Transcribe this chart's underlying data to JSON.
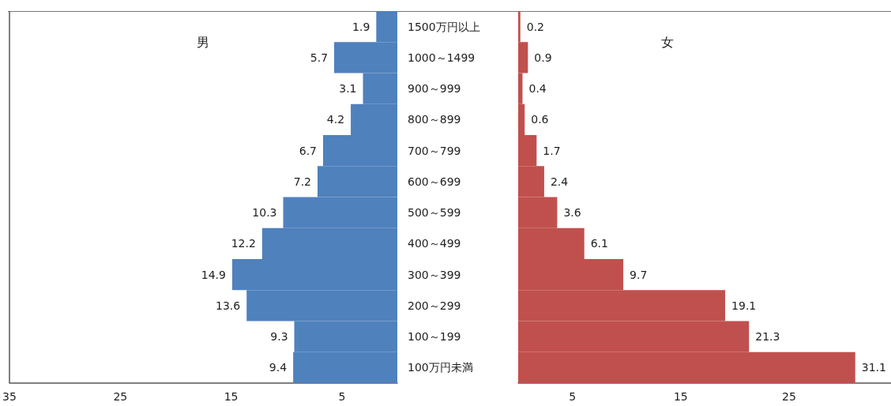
{
  "chart_data": [
    {
      "type": "bar",
      "orientation": "horizontal",
      "title": "男",
      "categories": [
        "1500万円以上",
        "1000～1499",
        "900～999",
        "800～899",
        "700～799",
        "600～699",
        "500～599",
        "400～499",
        "300～399",
        "200～299",
        "100～199",
        "100万円未満"
      ],
      "values": [
        1.9,
        5.7,
        3.1,
        4.2,
        6.7,
        7.2,
        10.3,
        12.2,
        14.9,
        13.6,
        9.3,
        9.4
      ],
      "data_labels": true,
      "color": "#4f81bd",
      "xlim": [
        35,
        0
      ],
      "xticks": [
        35,
        25,
        15,
        5
      ]
    },
    {
      "type": "bar",
      "orientation": "horizontal",
      "title": "女",
      "categories": [
        null,
        null,
        null,
        null,
        null,
        null,
        null,
        null,
        null,
        null,
        null,
        null
      ],
      "values": [
        0.2,
        0.9,
        0.4,
        0.6,
        1.7,
        2.4,
        3.6,
        6.1,
        9.7,
        19.1,
        21.3,
        31.1
      ],
      "data_labels": true,
      "color": "#c0504d",
      "xlim": [
        0,
        34.4
      ],
      "xticks": [
        5,
        15,
        25
      ]
    }
  ]
}
